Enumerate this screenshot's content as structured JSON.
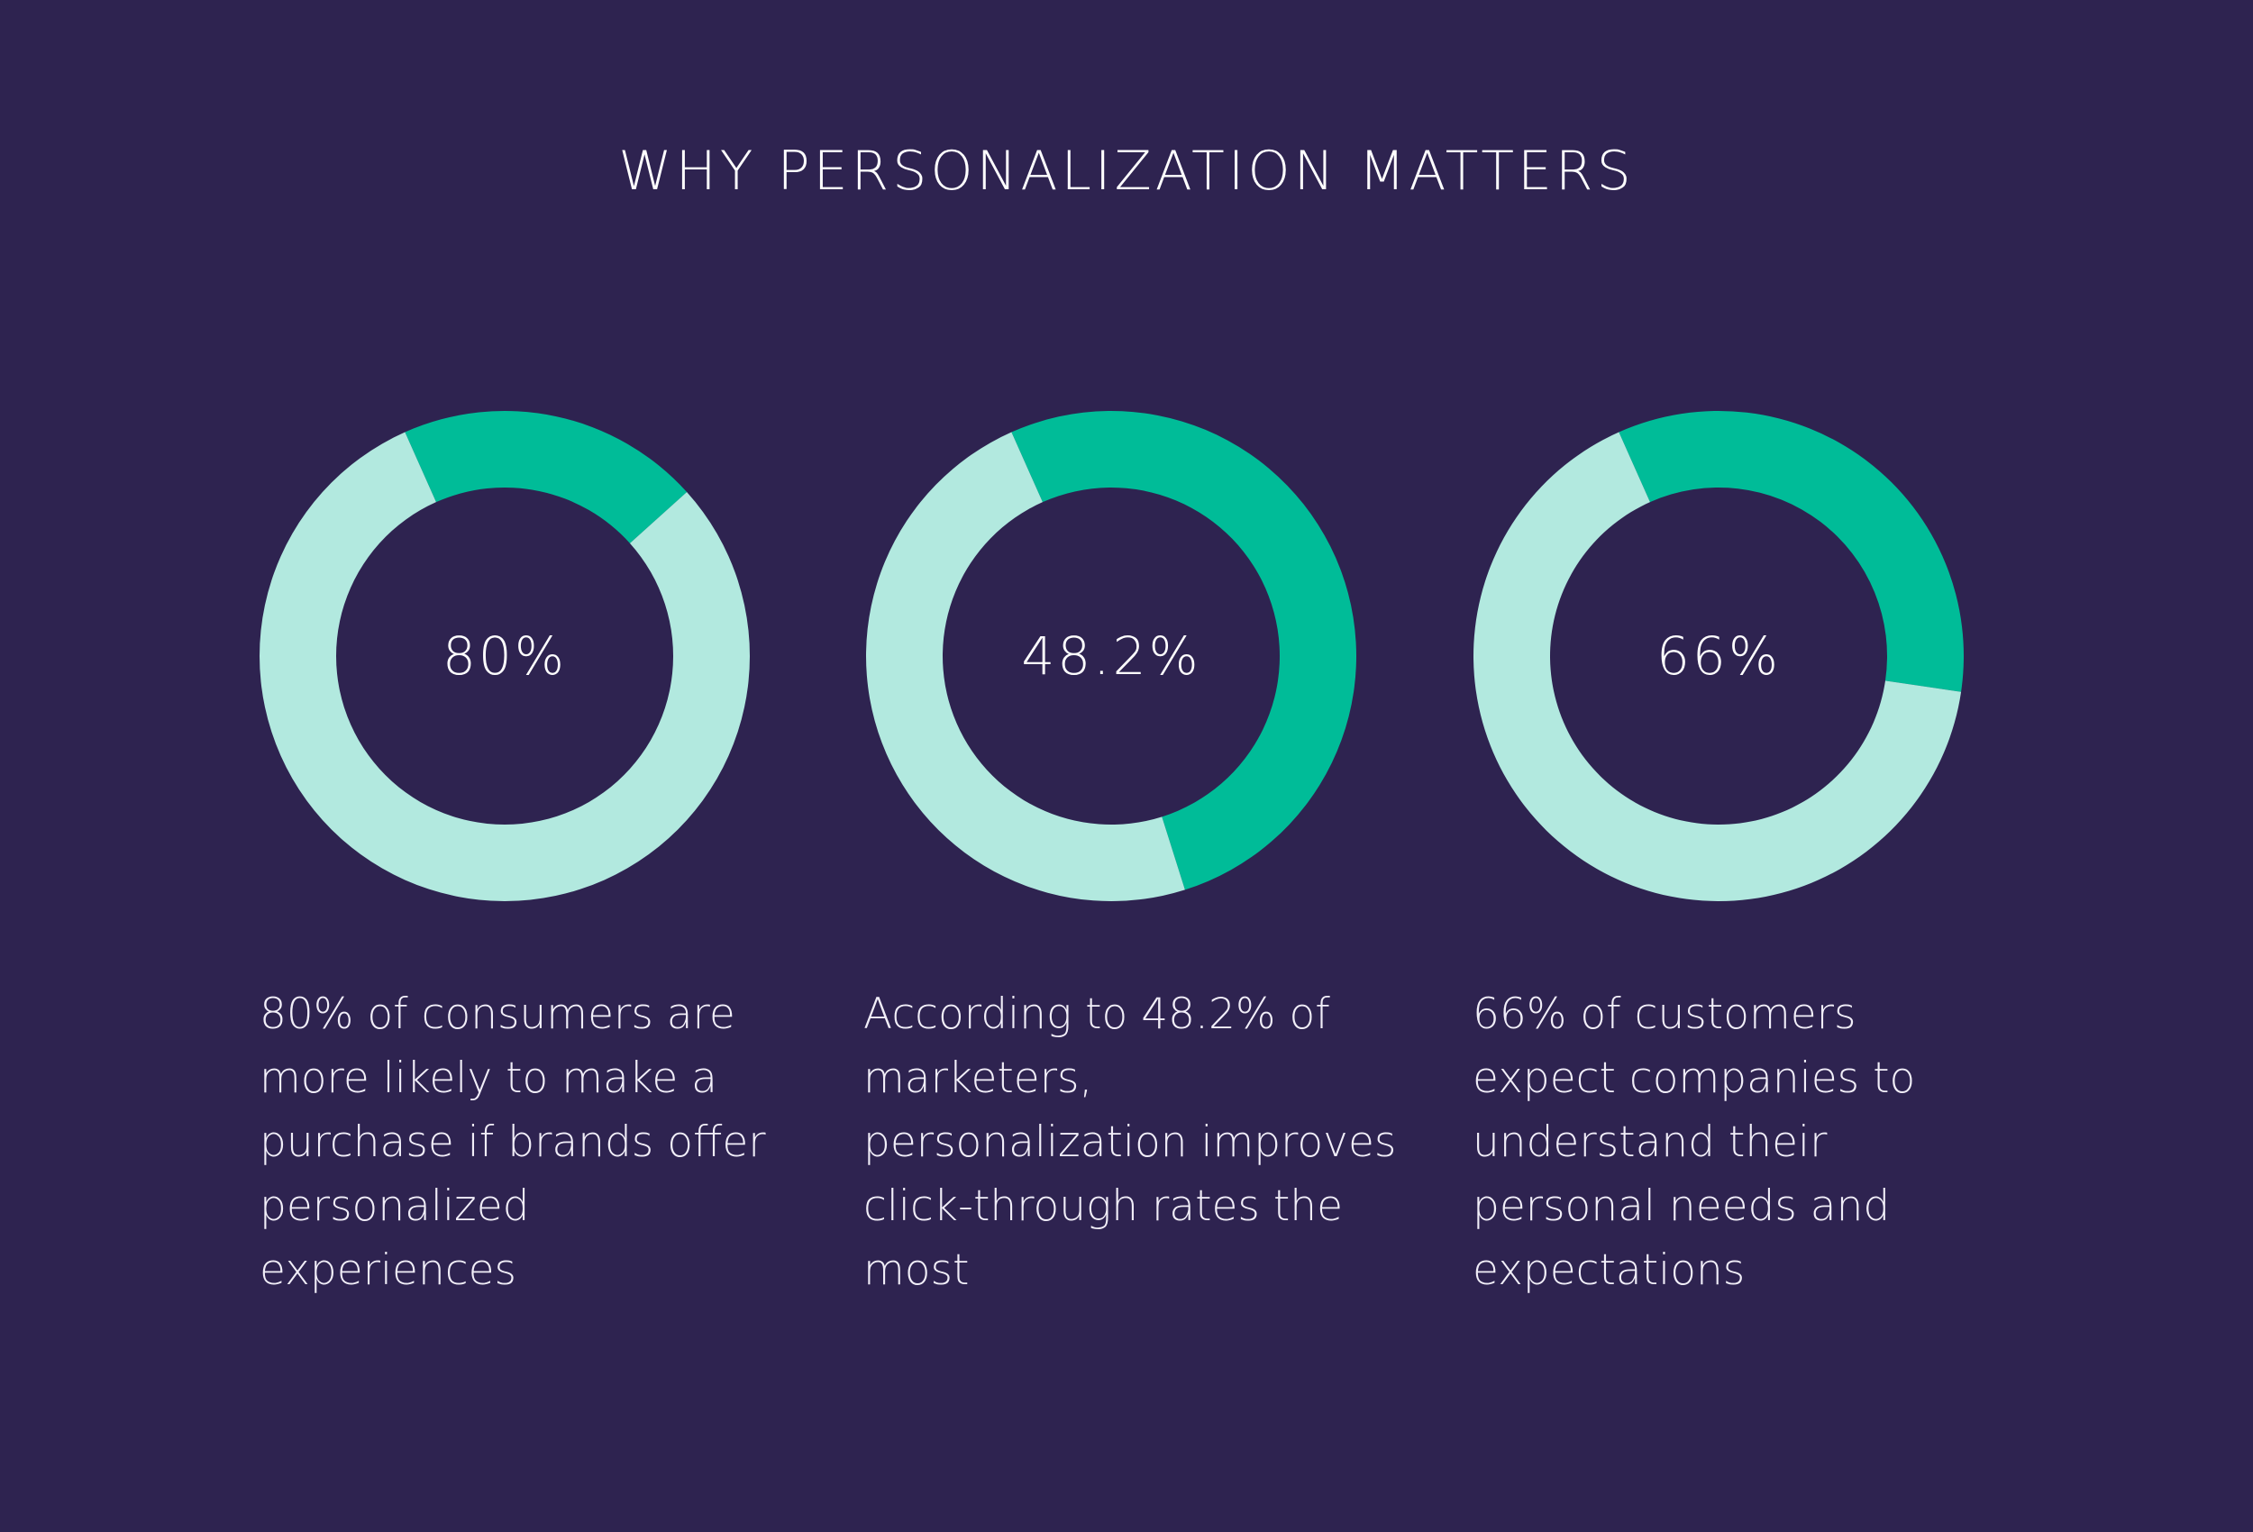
{
  "title": "WHY PERSONALIZATION MATTERS",
  "colors": {
    "background": "#2e2350",
    "accent": "#00bc98",
    "light": "#b2e9df",
    "text": "#ffffff"
  },
  "chart_data": [
    {
      "type": "pie",
      "value": 80,
      "label": "80%",
      "description": "80% of consumers are more likely to make a purchase if brands offer personalized experiences"
    },
    {
      "type": "pie",
      "value": 48.2,
      "label": "48.2%",
      "description": "According to 48.2% of marketers, personalization improves click-through rates the most"
    },
    {
      "type": "pie",
      "value": 66,
      "label": "66%",
      "description": "66% of customers expect companies to understand their personal needs and expectations"
    }
  ]
}
